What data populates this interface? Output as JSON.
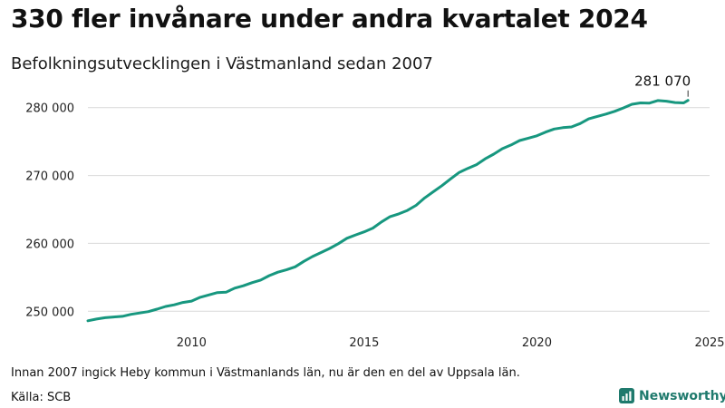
{
  "header": {
    "title": "330 fler invånare under andra kvartalet 2024",
    "subtitle": "Befolkningsutvecklingen i Västmanland sedan 2007"
  },
  "footer": {
    "note": "Innan 2007 ingick Heby kommun i Västmanlands län, nu är den en del av Uppsala län.",
    "source": "Källa: SCB",
    "brand": "Newsworthy"
  },
  "colors": {
    "line": "#17977f",
    "grid": "#d9d9d9",
    "brand": "#1f7a6d"
  },
  "chart_data": {
    "type": "line",
    "title": "330 fler invånare under andra kvartalet 2024",
    "subtitle": "Befolkningsutvecklingen i Västmanland sedan 2007",
    "xlabel": "",
    "ylabel": "",
    "xlim": [
      2007.0,
      2025.0
    ],
    "ylim": [
      247500,
      282500
    ],
    "x_ticks": [
      2010,
      2015,
      2020,
      2025
    ],
    "y_ticks": [
      250000,
      260000,
      270000,
      280000
    ],
    "y_tick_labels": [
      "250 000",
      "260 000",
      "270 000",
      "280 000"
    ],
    "grid": "horizontal",
    "annotation": {
      "label": "281 070",
      "x": 2024.375,
      "y": 281070
    },
    "series": [
      {
        "x": [
          2007.0,
          2007.25,
          2007.5,
          2007.75,
          2008.0,
          2008.25,
          2008.5,
          2008.75,
          2009.0,
          2009.25,
          2009.5,
          2009.75,
          2010.0,
          2010.25,
          2010.5,
          2010.75,
          2011.0,
          2011.25,
          2011.5,
          2011.75,
          2012.0,
          2012.25,
          2012.5,
          2012.75,
          2013.0,
          2013.25,
          2013.5,
          2013.75,
          2014.0,
          2014.25,
          2014.5,
          2014.75,
          2015.0,
          2015.25,
          2015.5,
          2015.75,
          2016.0,
          2016.25,
          2016.5,
          2016.75,
          2017.0,
          2017.25,
          2017.5,
          2017.75,
          2018.0,
          2018.25,
          2018.5,
          2018.75,
          2019.0,
          2019.25,
          2019.5,
          2019.75,
          2020.0,
          2020.25,
          2020.5,
          2020.75,
          2021.0,
          2021.25,
          2021.5,
          2021.75,
          2022.0,
          2022.25,
          2022.5,
          2022.75,
          2023.0,
          2023.25,
          2023.5,
          2023.75,
          2024.0,
          2024.25,
          2024.375
        ],
        "values": [
          248600,
          248850,
          249050,
          249150,
          249250,
          249550,
          249750,
          249950,
          250300,
          250700,
          250950,
          251300,
          251500,
          252050,
          252400,
          252750,
          252800,
          253400,
          253750,
          254200,
          254600,
          255250,
          255750,
          256100,
          256550,
          257350,
          258050,
          258650,
          259250,
          259950,
          260750,
          261250,
          261700,
          262250,
          263150,
          263950,
          264350,
          264850,
          265600,
          266700,
          267600,
          268500,
          269500,
          270450,
          271050,
          271600,
          272450,
          273150,
          273950,
          274500,
          275150,
          275500,
          275850,
          276400,
          276850,
          277050,
          277150,
          277650,
          278350,
          278700,
          279050,
          279450,
          279950,
          280500,
          280700,
          280650,
          281050,
          280950,
          280750,
          280700,
          281070
        ]
      }
    ]
  }
}
